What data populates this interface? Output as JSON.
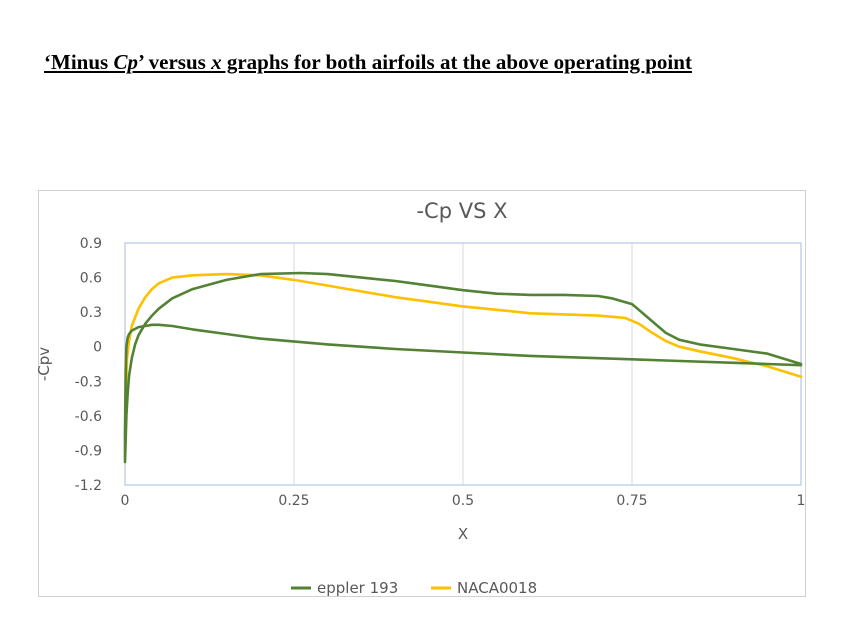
{
  "heading": {
    "part1": "‘Minus ",
    "cp": "Cp",
    "part2": "’ versus ",
    "x": "x",
    "part3": " graphs for both airfoils at the above operating point"
  },
  "chart_data": {
    "type": "line",
    "title": "-Cp VS  X",
    "xlabel": "X",
    "ylabel": "-Cpv",
    "xlim": [
      0,
      1
    ],
    "ylim": [
      -1.2,
      0.9
    ],
    "xticks": [
      "0",
      "0.25",
      "0.5",
      "0.75",
      "1"
    ],
    "yticks": [
      "0.9",
      "0.6",
      "0.3",
      "0",
      "-0.3",
      "-0.6",
      "-0.9",
      "-1.2"
    ],
    "grid": "vertical",
    "legend": "bottom",
    "series": [
      {
        "name": "eppler 193",
        "color": "#548235",
        "x": [
          1.0,
          0.95,
          0.9,
          0.85,
          0.82,
          0.8,
          0.78,
          0.76,
          0.75,
          0.72,
          0.7,
          0.65,
          0.6,
          0.55,
          0.5,
          0.45,
          0.4,
          0.35,
          0.3,
          0.26,
          0.2,
          0.15,
          0.1,
          0.07,
          0.05,
          0.04,
          0.03,
          0.02,
          0.015,
          0.01,
          0.006,
          0.004,
          0.002,
          0.001,
          0.0,
          0.0,
          0.001,
          0.002,
          0.004,
          0.006,
          0.01,
          0.02,
          0.03,
          0.04,
          0.05,
          0.07,
          0.1,
          0.15,
          0.2,
          0.3,
          0.4,
          0.5,
          0.6,
          0.7,
          0.8,
          0.9,
          0.95,
          1.0
        ],
        "y": [
          -0.15,
          -0.06,
          -0.02,
          0.02,
          0.06,
          0.12,
          0.22,
          0.32,
          0.37,
          0.42,
          0.44,
          0.45,
          0.45,
          0.46,
          0.49,
          0.53,
          0.57,
          0.6,
          0.63,
          0.64,
          0.63,
          0.58,
          0.5,
          0.42,
          0.33,
          0.27,
          0.2,
          0.1,
          0.02,
          -0.1,
          -0.25,
          -0.4,
          -0.6,
          -0.8,
          -1.0,
          -0.75,
          -0.2,
          0.0,
          0.08,
          0.11,
          0.14,
          0.17,
          0.18,
          0.19,
          0.19,
          0.18,
          0.15,
          0.11,
          0.07,
          0.02,
          -0.02,
          -0.05,
          -0.08,
          -0.1,
          -0.12,
          -0.14,
          -0.15,
          -0.16
        ]
      },
      {
        "name": "NACA0018",
        "color": "#FFC000",
        "x": [
          0.0,
          0.003,
          0.006,
          0.01,
          0.02,
          0.03,
          0.04,
          0.05,
          0.07,
          0.1,
          0.15,
          0.2,
          0.25,
          0.3,
          0.4,
          0.5,
          0.55,
          0.6,
          0.65,
          0.7,
          0.74,
          0.76,
          0.78,
          0.8,
          0.82,
          0.85,
          0.9,
          0.95,
          1.0
        ],
        "y": [
          -0.8,
          -0.1,
          0.05,
          0.18,
          0.33,
          0.43,
          0.5,
          0.55,
          0.6,
          0.62,
          0.63,
          0.62,
          0.58,
          0.53,
          0.43,
          0.35,
          0.32,
          0.29,
          0.28,
          0.27,
          0.25,
          0.2,
          0.12,
          0.05,
          0.0,
          -0.04,
          -0.1,
          -0.17,
          -0.26
        ]
      }
    ]
  }
}
